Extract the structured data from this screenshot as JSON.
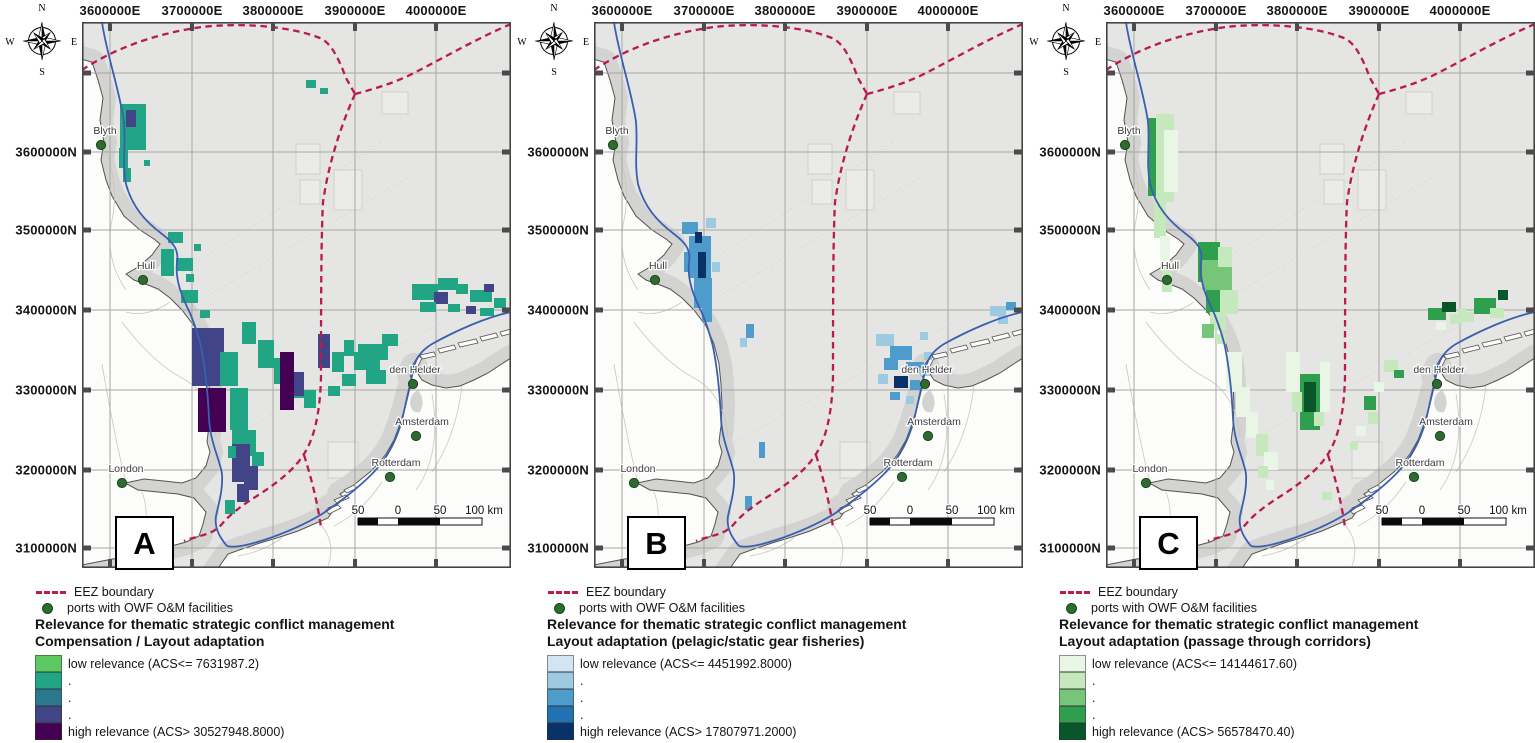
{
  "compass": {
    "n": "N",
    "e": "E",
    "s": "S",
    "w": "W"
  },
  "axes": {
    "x_labels": [
      "3600000E",
      "3700000E",
      "3800000E",
      "3900000E",
      "4000000E"
    ],
    "y_labels": [
      "3600000N",
      "3500000N",
      "3400000N",
      "3300000N",
      "3200000N",
      "3100000N"
    ]
  },
  "scalebar": {
    "labels": [
      "50",
      "0",
      "50",
      "100 km"
    ]
  },
  "cities": [
    "Blyth",
    "Hull",
    "den Helder",
    "Amsterdam",
    "Rotterdam",
    "London"
  ],
  "legend_shared": {
    "eez_label": "EEZ boundary",
    "ports_label": "ports with OWF O&M facilities",
    "title": "Relevance for thematic strategic conflict management"
  },
  "colors": {
    "eez": "#ba1a4d",
    "port": "#2f6b2f",
    "sea": "#e5e5e3",
    "nearshore": "#d3d3d1",
    "land": "#fcfcfb",
    "grid": "#a6a6a3",
    "frame": "#454545",
    "blue_line": "#3a5fb0"
  },
  "panels": [
    {
      "letter": "A",
      "legend": {
        "subtitle": "Compensation / Layout adaptation",
        "low_label": "low relevance (ACS<= 7631987.2)",
        "dot_label": ".",
        "high_label": "high relevance (ACS> 30527948.8000)",
        "ramp": [
          "#5ec962",
          "#21a585",
          "#2a788e",
          "#414487",
          "#440154"
        ]
      }
    },
    {
      "letter": "B",
      "legend": {
        "subtitle": "Layout adaptation (pelagic/static gear fisheries)",
        "low_label": "low relevance (ACS<= 4451992.8000)",
        "dot_label": ".",
        "high_label": "high relevance (ACS> 17807971.2000)",
        "ramp": [
          "#d3e4f3",
          "#9ecae1",
          "#4e9ccb",
          "#2171b5",
          "#0a3168"
        ]
      }
    },
    {
      "letter": "C",
      "legend": {
        "subtitle": "Layout adaptation (passage through corridors)",
        "low_label": "low relevance (ACS<= 14144617.60)",
        "dot_label": ".",
        "high_label": "high relevance (ACS> 56578470.40)",
        "ramp": [
          "#e9f5e5",
          "#c5e8bd",
          "#76c578",
          "#2f9e4f",
          "#09562b"
        ]
      }
    }
  ]
}
